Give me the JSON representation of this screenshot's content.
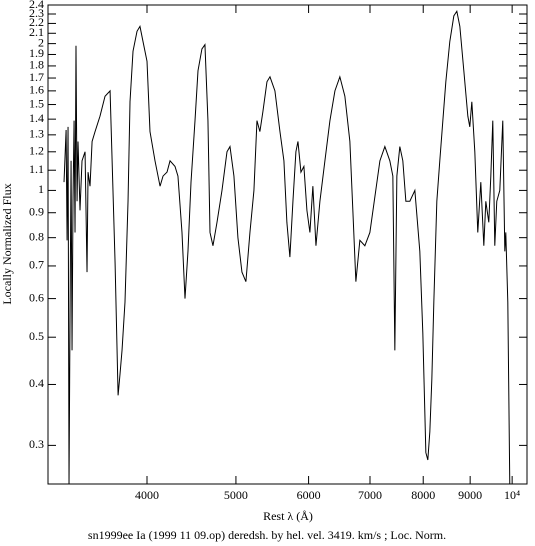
{
  "chart_data": {
    "type": "line",
    "xlabel": "Rest λ (Å)",
    "ylabel": "Locally Normalized Flux",
    "caption": "sn1999ee Ia (1999 11 09.op) deredsh. by hel. vel.  3419. km/s ;  Loc. Norm.",
    "xscale": "log",
    "yscale": "log",
    "xlim": [
      3120,
      10380
    ],
    "ylim": [
      0.25,
      2.4
    ],
    "xticks": [
      4000,
      5000,
      6000,
      7000,
      8000,
      9000,
      {
        "value": 10000,
        "label": "10⁴"
      }
    ],
    "yticks": [
      0.3,
      0.4,
      0.5,
      0.6,
      0.7,
      0.8,
      0.9,
      1,
      1.1,
      1.2,
      1.3,
      1.4,
      1.5,
      1.6,
      1.7,
      1.8,
      1.9,
      2,
      2.1,
      2.2,
      2.3,
      2.4
    ],
    "series": [
      {
        "color": "#000000",
        "x": [
          3248,
          3265,
          3273,
          3281,
          3289,
          3298,
          3306,
          3314,
          3322,
          3331,
          3339,
          3347,
          3356,
          3364,
          3381,
          3398,
          3424,
          3441,
          3450,
          3467,
          3485,
          3511,
          3555,
          3600,
          3646,
          3692,
          3720,
          3738,
          3757,
          3785,
          3814,
          3833,
          3862,
          3901,
          3930,
          3960,
          4000,
          4030,
          4081,
          4133,
          4164,
          4206,
          4238,
          4291,
          4323,
          4367,
          4400,
          4433,
          4467,
          4512,
          4546,
          4591,
          4626,
          4661,
          4685,
          4720,
          4768,
          4828,
          4889,
          4926,
          4975,
          5025,
          5076,
          5127,
          5179,
          5231,
          5271,
          5310,
          5350,
          5405,
          5446,
          5514,
          5584,
          5640,
          5682,
          5725,
          5769,
          5812,
          5842,
          5886,
          5930,
          5975,
          6020,
          6065,
          6112,
          6173,
          6251,
          6330,
          6410,
          6490,
          6572,
          6655,
          6705,
          6756,
          6824,
          6910,
          6998,
          7086,
          7176,
          7266,
          7357,
          7413,
          7450,
          7488,
          7544,
          7601,
          7659,
          7736,
          7834,
          7932,
          7992,
          8053,
          8093,
          8134,
          8175,
          8216,
          8278,
          8340,
          8404,
          8467,
          8552,
          8639,
          8704,
          8770,
          8858,
          8948,
          8992,
          9038,
          9106,
          9174,
          9244,
          9314,
          9361,
          9431,
          9479,
          9526,
          9574,
          9622,
          9695,
          9768,
          9818,
          9842,
          9892,
          9941
        ],
        "values": [
          1.04,
          1.33,
          0.79,
          1.35,
          0.25,
          0.59,
          1.15,
          0.47,
          0.95,
          1.39,
          0.82,
          1.98,
          0.95,
          1.26,
          0.91,
          1.15,
          1.2,
          0.68,
          1.09,
          1.02,
          1.26,
          1.32,
          1.42,
          1.56,
          1.6,
          0.71,
          0.38,
          0.42,
          0.47,
          0.59,
          0.95,
          1.52,
          1.93,
          2.12,
          2.17,
          2.02,
          1.84,
          1.32,
          1.15,
          1.02,
          1.07,
          1.09,
          1.15,
          1.12,
          1.07,
          0.82,
          0.6,
          0.75,
          1.04,
          1.39,
          1.76,
          1.95,
          1.99,
          1.39,
          0.82,
          0.77,
          0.86,
          1.0,
          1.2,
          1.23,
          1.07,
          0.8,
          0.68,
          0.65,
          0.82,
          1.0,
          1.39,
          1.32,
          1.45,
          1.67,
          1.71,
          1.6,
          1.32,
          1.15,
          0.86,
          0.73,
          0.95,
          1.2,
          1.26,
          1.09,
          1.12,
          0.91,
          0.82,
          1.02,
          0.77,
          0.95,
          1.15,
          1.39,
          1.6,
          1.71,
          1.56,
          1.26,
          0.91,
          0.65,
          0.79,
          0.77,
          0.82,
          0.97,
          1.15,
          1.23,
          1.15,
          1.07,
          0.47,
          1.07,
          1.23,
          1.15,
          0.95,
          0.95,
          1.0,
          0.75,
          0.51,
          0.29,
          0.28,
          0.32,
          0.41,
          0.59,
          0.95,
          1.15,
          1.39,
          1.67,
          2.02,
          2.28,
          2.33,
          2.17,
          1.76,
          1.42,
          1.35,
          1.52,
          1.2,
          0.82,
          1.04,
          0.77,
          0.95,
          0.86,
          1.07,
          1.39,
          0.77,
          0.95,
          1.0,
          1.39,
          0.75,
          0.82,
          0.59,
          0.25
        ]
      }
    ]
  }
}
